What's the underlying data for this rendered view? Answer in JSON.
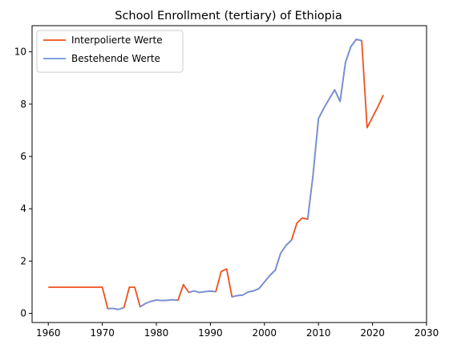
{
  "chart_data": {
    "type": "line",
    "title": "School Enrollment (tertiary) of Ethiopia",
    "xlabel": "",
    "ylabel": "",
    "xlim": [
      1957,
      2030
    ],
    "ylim": [
      -0.35,
      11.0
    ],
    "xticks": [
      1960,
      1970,
      1980,
      1990,
      2000,
      2010,
      2020,
      2030
    ],
    "yticks": [
      0,
      2,
      4,
      6,
      8,
      10
    ],
    "legend_position": "top-left",
    "grid": false,
    "series": [
      {
        "name": "Interpolierte Werte",
        "color": "#f0501c",
        "x": [
          1960,
          1961,
          1962,
          1963,
          1964,
          1965,
          1966,
          1967,
          1968,
          1969,
          1970,
          1971,
          1972,
          1973,
          1974,
          1975,
          1976,
          1977,
          1978,
          1979,
          1980,
          1981,
          1982,
          1983,
          1984,
          1985,
          1986,
          1987,
          1988,
          1989,
          1990,
          1991,
          1992,
          1993,
          1994,
          1995,
          1996,
          1997,
          1998,
          1999,
          2000,
          2001,
          2002,
          2003,
          2004,
          2005,
          2006,
          2007,
          2008,
          2009,
          2010,
          2011,
          2012,
          2013,
          2014,
          2015,
          2016,
          2017,
          2018,
          2019,
          2020,
          2021,
          2022
        ],
        "values": [
          1.0,
          1.0,
          1.0,
          1.0,
          1.0,
          1.0,
          1.0,
          1.0,
          1.0,
          1.0,
          1.0,
          0.18,
          0.19,
          0.15,
          0.22,
          1.0,
          1.0,
          0.25,
          0.38,
          0.46,
          0.51,
          0.49,
          0.5,
          0.52,
          0.5,
          1.1,
          0.8,
          0.86,
          0.8,
          0.83,
          0.85,
          0.83,
          1.6,
          1.7,
          0.63,
          0.68,
          0.7,
          0.82,
          0.86,
          0.95,
          1.2,
          1.45,
          1.65,
          2.3,
          2.6,
          2.8,
          3.45,
          3.65,
          3.6,
          5.3,
          7.45,
          7.85,
          8.2,
          8.55,
          8.1,
          9.6,
          10.2,
          10.48,
          10.43,
          7.1,
          7.5,
          7.9,
          8.35
        ]
      },
      {
        "name": "Bestehende Werte",
        "color": "#6f93de",
        "segments": [
          {
            "x": [
              1971,
              1972,
              1973,
              1974
            ],
            "values": [
              0.18,
              0.19,
              0.15,
              0.22
            ]
          },
          {
            "x": [
              1977,
              1978,
              1979,
              1980,
              1981,
              1982,
              1983,
              1984
            ],
            "values": [
              0.25,
              0.38,
              0.46,
              0.51,
              0.49,
              0.5,
              0.52,
              0.5
            ]
          },
          {
            "x": [
              1986,
              1987,
              1988,
              1989,
              1990,
              1991
            ],
            "values": [
              0.8,
              0.86,
              0.8,
              0.83,
              0.85,
              0.83
            ]
          },
          {
            "x": [
              1994,
              1995,
              1996,
              1997,
              1998,
              1999,
              2000,
              2001,
              2002,
              2003,
              2004,
              2005
            ],
            "values": [
              0.63,
              0.68,
              0.7,
              0.82,
              0.86,
              0.95,
              1.2,
              1.45,
              1.65,
              2.3,
              2.6,
              2.8
            ]
          },
          {
            "x": [
              2008,
              2009,
              2010,
              2011,
              2012,
              2013,
              2014,
              2015,
              2016,
              2017,
              2018
            ],
            "values": [
              3.6,
              5.3,
              7.45,
              7.85,
              8.2,
              8.55,
              8.1,
              9.6,
              10.2,
              10.48,
              10.43
            ]
          }
        ]
      }
    ]
  }
}
